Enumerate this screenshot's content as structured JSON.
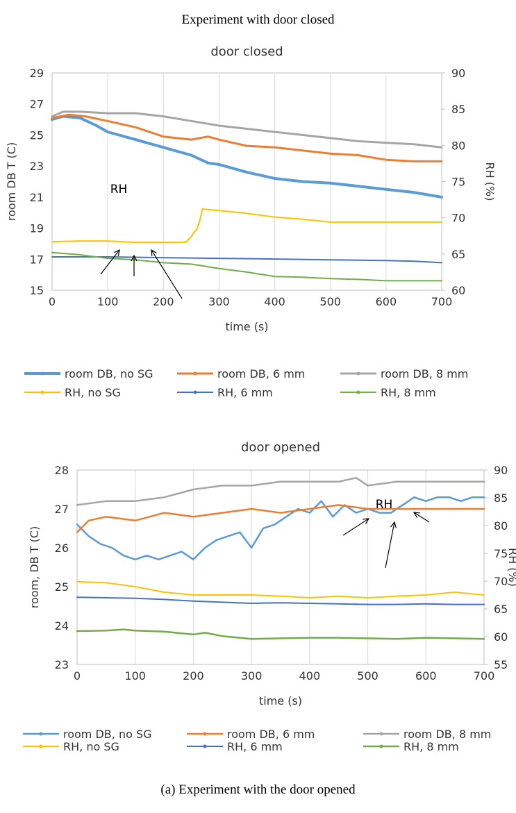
{
  "header": {
    "title": "Experiment with door closed"
  },
  "caption": "(a)   Experiment with the door opened",
  "chart_data": [
    {
      "type": "line",
      "title": "door closed",
      "xlabel": "time (s)",
      "ylabel": "room DB T (C)",
      "y2label": "RH (%)",
      "xlim": [
        0,
        700
      ],
      "xticks": [
        "0",
        "100",
        "200",
        "300",
        "400",
        "500",
        "600",
        "700"
      ],
      "ylim": [
        15,
        29
      ],
      "yticks": [
        "15",
        "17",
        "19",
        "21",
        "23",
        "25",
        "27",
        "29"
      ],
      "y2lim": [
        60,
        90
      ],
      "y2ticks": [
        "60",
        "65",
        "70",
        "75",
        "80",
        "85",
        "90"
      ],
      "grid": "vertical",
      "legend_position": "bottom",
      "annotation": {
        "text": "RH",
        "x": 145,
        "y": 20.7
      },
      "series": [
        {
          "name": "room DB, no SG",
          "color": "#5b9bd5",
          "axis": "left",
          "width": 4,
          "x": [
            0,
            20,
            50,
            80,
            100,
            150,
            200,
            250,
            280,
            300,
            350,
            400,
            450,
            500,
            550,
            600,
            650,
            700
          ],
          "y": [
            26.0,
            26.2,
            26.1,
            25.6,
            25.2,
            24.7,
            24.2,
            23.7,
            23.2,
            23.1,
            22.6,
            22.2,
            22.0,
            21.9,
            21.7,
            21.5,
            21.3,
            21.0
          ]
        },
        {
          "name": "room DB, 6 mm",
          "color": "#ed7d31",
          "axis": "left",
          "width": 3,
          "x": [
            0,
            30,
            60,
            100,
            150,
            200,
            250,
            280,
            300,
            350,
            400,
            450,
            500,
            550,
            600,
            650,
            700
          ],
          "y": [
            26.1,
            26.3,
            26.2,
            25.9,
            25.5,
            24.9,
            24.7,
            24.9,
            24.7,
            24.3,
            24.2,
            24.0,
            23.8,
            23.7,
            23.4,
            23.3,
            23.3
          ]
        },
        {
          "name": "room DB, 8 mm",
          "color": "#a5a5a5",
          "axis": "left",
          "width": 3,
          "x": [
            0,
            20,
            50,
            100,
            150,
            200,
            250,
            300,
            350,
            400,
            450,
            500,
            550,
            600,
            650,
            700
          ],
          "y": [
            26.2,
            26.5,
            26.5,
            26.4,
            26.4,
            26.2,
            25.9,
            25.6,
            25.4,
            25.2,
            25.0,
            24.8,
            24.6,
            24.5,
            24.4,
            24.2
          ]
        },
        {
          "name": "RH, no SG",
          "color": "#ffc000",
          "axis": "right",
          "width": 2,
          "x": [
            0,
            50,
            100,
            150,
            200,
            240,
            250,
            255,
            260,
            265,
            270,
            300,
            350,
            400,
            450,
            500,
            550,
            600,
            650,
            700
          ],
          "y": [
            66.7,
            66.8,
            66.8,
            66.6,
            66.6,
            66.6,
            67.4,
            68.0,
            68.4,
            69.5,
            71.2,
            71.0,
            70.6,
            70.1,
            69.8,
            69.4,
            69.4,
            69.4,
            69.4,
            69.4
          ]
        },
        {
          "name": "RH, 6 mm",
          "color": "#4472c4",
          "axis": "right",
          "width": 2,
          "x": [
            0,
            100,
            200,
            300,
            400,
            500,
            600,
            650,
            700
          ],
          "y": [
            64.6,
            64.6,
            64.5,
            64.4,
            64.3,
            64.2,
            64.1,
            64.0,
            63.8
          ]
        },
        {
          "name": "RH, 8 mm",
          "color": "#70ad47",
          "axis": "right",
          "width": 2,
          "x": [
            0,
            50,
            100,
            150,
            200,
            250,
            300,
            350,
            400,
            450,
            500,
            550,
            600,
            650,
            700
          ],
          "y": [
            65.2,
            64.9,
            64.4,
            64.2,
            63.8,
            63.6,
            63.0,
            62.5,
            61.9,
            61.8,
            61.6,
            61.5,
            61.3,
            61.3,
            61.3
          ]
        }
      ]
    },
    {
      "type": "line",
      "title": "door opened",
      "xlabel": "time (s)",
      "ylabel": "room, DB T (C)",
      "y2label": "RH (%)",
      "xlim": [
        0,
        700
      ],
      "xticks": [
        "0",
        "100",
        "200",
        "300",
        "400",
        "500",
        "600",
        "700"
      ],
      "ylim": [
        23,
        28
      ],
      "yticks": [
        "23",
        "24",
        "25",
        "26",
        "27",
        "28"
      ],
      "y2lim": [
        55,
        90
      ],
      "y2ticks": [
        "55",
        "60",
        "65",
        "70",
        "75",
        "80",
        "85",
        "90"
      ],
      "grid": "vertical",
      "legend_position": "bottom",
      "annotation": {
        "text": "RH",
        "x": 565,
        "y": 25.5
      },
      "series": [
        {
          "name": "room DB, no SG",
          "color": "#5b9bd5",
          "axis": "left",
          "width": 2.5,
          "x": [
            0,
            20,
            40,
            60,
            80,
            100,
            120,
            140,
            160,
            180,
            200,
            220,
            240,
            260,
            280,
            300,
            320,
            340,
            360,
            380,
            400,
            420,
            440,
            460,
            480,
            500,
            520,
            540,
            560,
            580,
            600,
            620,
            640,
            660,
            680,
            700
          ],
          "y": [
            26.6,
            26.3,
            26.1,
            26.0,
            25.8,
            25.7,
            25.8,
            25.7,
            25.8,
            25.9,
            25.7,
            26.0,
            26.2,
            26.3,
            26.4,
            26.0,
            26.5,
            26.6,
            26.8,
            27.0,
            26.9,
            27.2,
            26.8,
            27.1,
            26.9,
            27.0,
            26.9,
            26.9,
            27.1,
            27.3,
            27.2,
            27.3,
            27.3,
            27.2,
            27.3,
            27.3
          ]
        },
        {
          "name": "room DB, 6 mm",
          "color": "#ed7d31",
          "axis": "left",
          "width": 2.5,
          "x": [
            0,
            20,
            50,
            100,
            150,
            200,
            250,
            300,
            350,
            400,
            450,
            500,
            550,
            600,
            650,
            700
          ],
          "y": [
            26.4,
            26.7,
            26.8,
            26.7,
            26.9,
            26.8,
            26.9,
            27.0,
            26.9,
            27.0,
            27.1,
            27.0,
            27.0,
            27.0,
            27.0,
            27.0
          ]
        },
        {
          "name": "room DB, 8 mm",
          "color": "#a5a5a5",
          "axis": "left",
          "width": 2.5,
          "x": [
            0,
            50,
            100,
            150,
            200,
            250,
            300,
            350,
            400,
            450,
            480,
            500,
            550,
            600,
            650,
            700
          ],
          "y": [
            27.1,
            27.2,
            27.2,
            27.3,
            27.5,
            27.6,
            27.6,
            27.7,
            27.7,
            27.7,
            27.8,
            27.6,
            27.7,
            27.7,
            27.7,
            27.7
          ]
        },
        {
          "name": "RH, no SG",
          "color": "#ffc000",
          "axis": "right",
          "width": 2,
          "x": [
            0,
            50,
            100,
            150,
            200,
            250,
            300,
            350,
            400,
            450,
            500,
            550,
            600,
            650,
            700
          ],
          "y": [
            69.9,
            69.7,
            69.0,
            68.0,
            67.5,
            67.5,
            67.5,
            67.3,
            67.0,
            67.3,
            67.0,
            67.3,
            67.5,
            68.0,
            67.5
          ]
        },
        {
          "name": "RH, 6 mm",
          "color": "#4472c4",
          "axis": "right",
          "width": 2,
          "x": [
            0,
            50,
            100,
            150,
            200,
            250,
            300,
            350,
            400,
            450,
            500,
            550,
            600,
            650,
            700
          ],
          "y": [
            67.1,
            67.0,
            66.9,
            66.7,
            66.4,
            66.2,
            66.0,
            66.1,
            66.0,
            65.9,
            65.8,
            65.8,
            65.9,
            65.8,
            65.8
          ]
        },
        {
          "name": "RH, 8 mm",
          "color": "#70ad47",
          "axis": "right",
          "width": 2.5,
          "x": [
            0,
            50,
            80,
            100,
            150,
            200,
            220,
            250,
            300,
            350,
            400,
            450,
            500,
            550,
            600,
            650,
            700
          ],
          "y": [
            61.0,
            61.1,
            61.3,
            61.1,
            60.9,
            60.4,
            60.7,
            60.1,
            59.6,
            59.7,
            59.8,
            59.8,
            59.7,
            59.6,
            59.8,
            59.7,
            59.6
          ]
        }
      ]
    }
  ]
}
